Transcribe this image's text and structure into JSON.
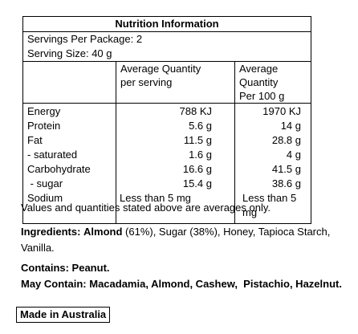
{
  "panel": {
    "title": "Nutrition Information",
    "servings_per_package": "Servings Per Package: 2",
    "serving_size": "Serving Size: 40 g",
    "col_serving_l1": "Average Quantity",
    "col_serving_l2": "per serving",
    "col_100g_l1": "Average Quantity",
    "col_100g_l2": "Per 100 g",
    "rows": [
      {
        "label": "Energy",
        "serving": "788 KJ",
        "per100": "1970 KJ"
      },
      {
        "label": "Protein",
        "serving": "5.6 g",
        "per100": "14 g"
      },
      {
        "label": "Fat",
        "serving": "11.5 g",
        "per100": "28.8 g"
      },
      {
        "label": "- saturated",
        "serving": "1.6 g",
        "per100": "4 g"
      },
      {
        "label": "Carbohydrate",
        "serving": "16.6 g",
        "per100": "41.5 g"
      },
      {
        "label": " - sugar",
        "serving": "15.4 g",
        "per100": "38.6 g"
      },
      {
        "label": "Sodium",
        "serving": "Less than 5 mg",
        "per100": "Less than 5 mg"
      }
    ]
  },
  "note": "Values and quantities stated above are averages only.",
  "ingredients": {
    "label": "Ingredients:",
    "first_item": "Almond",
    "rest": " (61%), Sugar (38%), Honey, Tapioca Starch, Vanilla."
  },
  "contains": "Contains: Peanut.",
  "may_contain": {
    "label": "May Contain:",
    "text": " Macadamia, Almond, Cashew,  Pistachio, Hazelnut."
  },
  "badge": "Made in Australia"
}
